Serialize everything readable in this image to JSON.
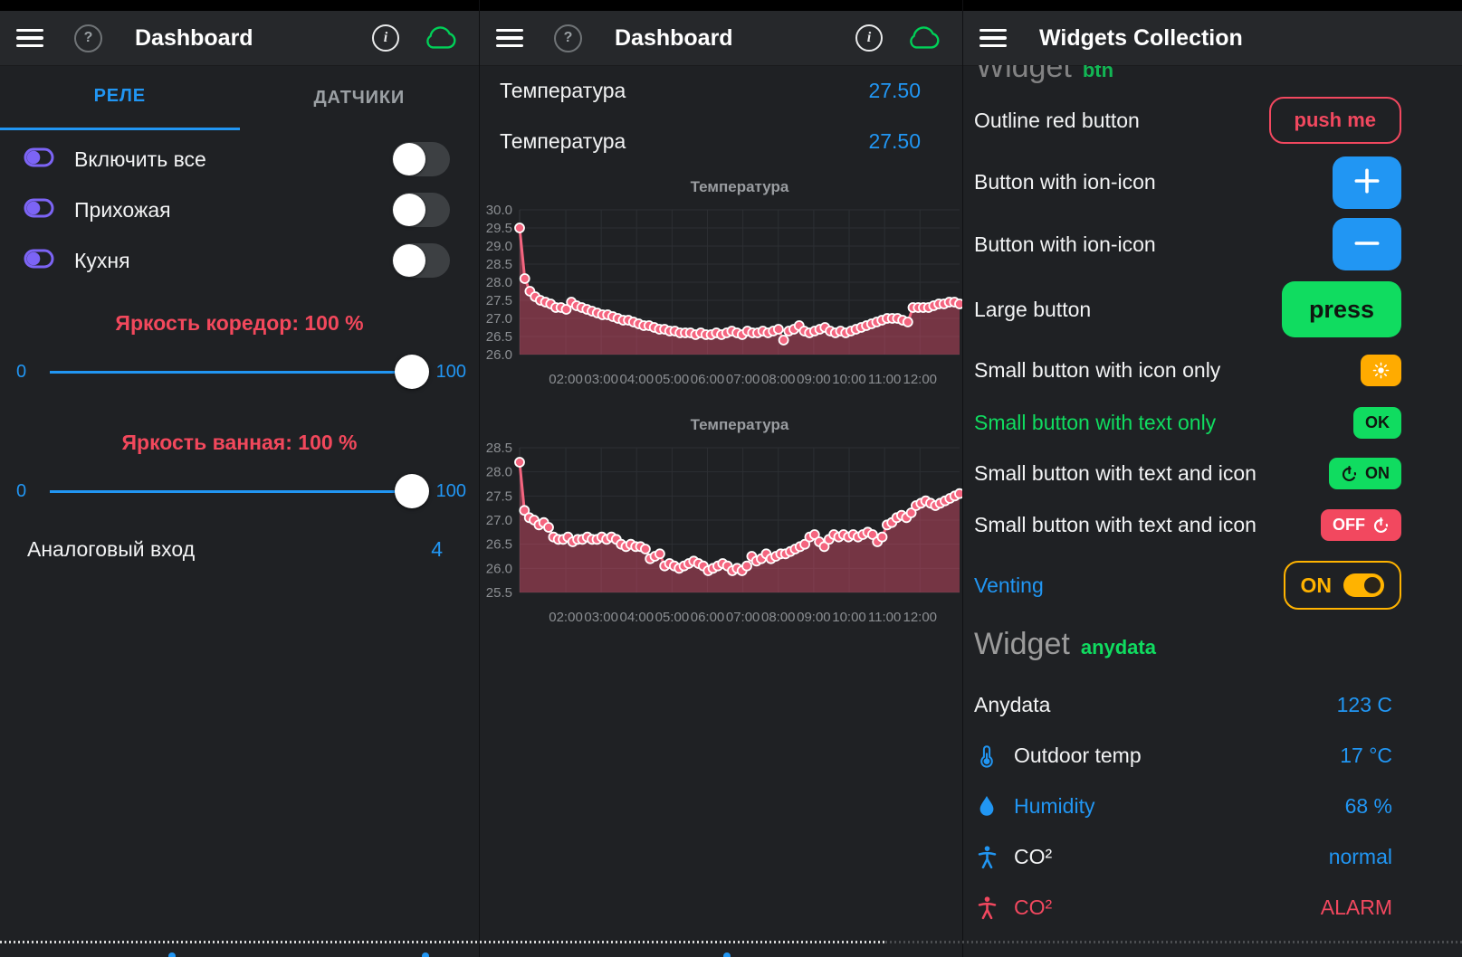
{
  "colors": {
    "accent": "#2196f3",
    "danger": "#f2485f",
    "success": "#10dc60",
    "warning": "#ffab00",
    "purple": "#7c64f5",
    "chart_line": "#f4657f",
    "chart_fill": "rgba(235,80,115,0.42)",
    "inactive_gray": "#9ba0a4"
  },
  "left": {
    "header": {
      "title": "Dashboard",
      "icons": [
        "menu-icon",
        "help-icon",
        "info-icon",
        "cloud-icon"
      ]
    },
    "tabs": [
      {
        "label": "РЕЛЕ",
        "active": true
      },
      {
        "label": "ДАТЧИКИ",
        "active": false
      }
    ],
    "switches": [
      {
        "label": "Включить все",
        "state": "off"
      },
      {
        "label": "Прихожая",
        "state": "off"
      },
      {
        "label": "Кухня",
        "state": "off"
      }
    ],
    "sliders": [
      {
        "label": "Яркость коредор: 100 %",
        "min": "0",
        "max": "100",
        "value": 100
      },
      {
        "label": "Яркость ванная: 100 %",
        "min": "0",
        "max": "100",
        "value": 100
      }
    ],
    "analog": {
      "label": "Аналоговый вход",
      "value": "4"
    }
  },
  "middle": {
    "header": {
      "title": "Dashboard",
      "icons": [
        "menu-icon",
        "help-icon",
        "info-icon",
        "cloud-icon"
      ]
    },
    "values": [
      {
        "label": "Температура",
        "value": "27.50"
      },
      {
        "label": "Температура",
        "value": "27.50"
      }
    ]
  },
  "right": {
    "header": {
      "title": "Widgets Collection",
      "icons": [
        "menu-icon"
      ]
    },
    "clipped_heading": {
      "title": "Widget",
      "tag": "btn"
    },
    "rows": [
      {
        "label": "Outline red button",
        "label_color": "#f2f3f4",
        "control": {
          "type": "outline",
          "text": "push me",
          "color": "#f2485f"
        }
      },
      {
        "label": "Button with ion-icon",
        "label_color": "#f2f3f4",
        "control": {
          "type": "solid",
          "icon": "plus",
          "color": "#2196f3",
          "icon_color": "#ffffff"
        }
      },
      {
        "label": "Button with ion-icon",
        "label_color": "#f2f3f4",
        "control": {
          "type": "solid",
          "icon": "minus",
          "color": "#2196f3",
          "icon_color": "#ffffff"
        }
      },
      {
        "label": "Large button",
        "label_color": "#f2f3f4",
        "control": {
          "type": "large",
          "text": "press",
          "color": "#10dc60",
          "text_color": "#101510"
        }
      },
      {
        "label": "Small button with icon only",
        "label_color": "#f2f3f4",
        "control": {
          "type": "small",
          "icon": "sun",
          "color": "#ffab00",
          "icon_color": "#ffffff"
        }
      },
      {
        "label": "Small button with text only",
        "label_color": "#10dc60",
        "control": {
          "type": "small",
          "text": "OK",
          "color": "#10dc60",
          "text_color": "#101510"
        }
      },
      {
        "label": "Small button with text and icon",
        "label_color": "#f2f3f4",
        "control": {
          "type": "small",
          "icon": "power",
          "icon_pos": "left",
          "text": "ON",
          "color": "#10dc60",
          "text_color": "#101510",
          "icon_color": "#101510"
        }
      },
      {
        "label": "Small button with text and icon",
        "label_color": "#f2f3f4",
        "control": {
          "type": "small",
          "icon": "power",
          "icon_pos": "right",
          "text": "OFF",
          "color": "#f2485f",
          "text_color": "#ffffff",
          "icon_color": "#ffffff"
        }
      },
      {
        "label": "Venting",
        "label_color": "#2196f3",
        "control": {
          "type": "toggle_outline",
          "text": "ON",
          "color": "#ffb300",
          "state": "on"
        }
      }
    ],
    "widget_heading": {
      "title": "Widget",
      "tag": "anydata"
    },
    "data_rows": [
      {
        "icon": null,
        "label": "Anydata",
        "value": "123 C",
        "label_color": "#f2f3f4",
        "value_color": "#2196f3"
      },
      {
        "icon": "thermometer",
        "icon_color": "#2196f3",
        "label": "Outdoor temp",
        "value": "17 °C",
        "label_color": "#f2f3f4",
        "value_color": "#2196f3"
      },
      {
        "icon": "droplet",
        "icon_color": "#2196f3",
        "label": "Humidity",
        "value": "68 %",
        "label_color": "#2196f3",
        "value_color": "#2196f3"
      },
      {
        "icon": "body",
        "icon_color": "#2196f3",
        "label": "CO²",
        "value": "normal",
        "label_color": "#f2f3f4",
        "value_color": "#2196f3"
      },
      {
        "icon": "body",
        "icon_color": "#f2485f",
        "label": "CO²",
        "value": "ALARM",
        "label_color": "#f2485f",
        "value_color": "#f2485f"
      }
    ]
  },
  "chart_data": [
    {
      "type": "line",
      "title": "Температура",
      "xlabel": "",
      "ylabel": "",
      "ylim": [
        26.0,
        30.0
      ],
      "y_ticks": [
        "30.0",
        "29.5",
        "29.0",
        "28.5",
        "28.0",
        "27.5",
        "27.0",
        "26.5",
        "26.0"
      ],
      "x_ticks": [
        "02:00",
        "03:00",
        "04:00",
        "05:00",
        "06:00",
        "07:00",
        "08:00",
        "09:00",
        "10:00",
        "11:00",
        "12:00"
      ],
      "grid": true,
      "legend": false,
      "line_color": "#f4657f",
      "fill_color": "rgba(235,80,115,0.42)",
      "marker": "circle",
      "values": [
        29.5,
        28.1,
        27.75,
        27.6,
        27.5,
        27.45,
        27.4,
        27.3,
        27.3,
        27.25,
        27.45,
        27.35,
        27.3,
        27.25,
        27.2,
        27.15,
        27.1,
        27.1,
        27.05,
        27.0,
        26.95,
        26.95,
        26.9,
        26.85,
        26.8,
        26.8,
        26.75,
        26.7,
        26.7,
        26.65,
        26.65,
        26.6,
        26.6,
        26.6,
        26.55,
        26.6,
        26.55,
        26.55,
        26.6,
        26.55,
        26.6,
        26.65,
        26.6,
        26.55,
        26.65,
        26.6,
        26.6,
        26.65,
        26.6,
        26.65,
        26.7,
        26.4,
        26.65,
        26.7,
        26.8,
        26.65,
        26.6,
        26.65,
        26.7,
        26.75,
        26.65,
        26.6,
        26.65,
        26.6,
        26.65,
        26.7,
        26.75,
        26.8,
        26.85,
        26.9,
        26.95,
        27.0,
        27.0,
        27.0,
        26.95,
        26.9,
        27.3,
        27.3,
        27.3,
        27.3,
        27.35,
        27.4,
        27.4,
        27.45,
        27.45,
        27.4
      ]
    },
    {
      "type": "line",
      "title": "Температура",
      "xlabel": "",
      "ylabel": "",
      "ylim": [
        25.5,
        28.5
      ],
      "y_ticks": [
        "28.5",
        "28.0",
        "27.5",
        "27.0",
        "26.5",
        "26.0",
        "25.5"
      ],
      "x_ticks": [
        "02:00",
        "03:00",
        "04:00",
        "05:00",
        "06:00",
        "07:00",
        "08:00",
        "09:00",
        "10:00",
        "11:00",
        "12:00"
      ],
      "grid": true,
      "legend": false,
      "line_color": "#f4657f",
      "fill_color": "rgba(235,80,115,0.42)",
      "marker": "circle",
      "values": [
        28.2,
        27.2,
        27.05,
        27.0,
        26.9,
        26.95,
        26.85,
        26.65,
        26.6,
        26.6,
        26.65,
        26.55,
        26.6,
        26.6,
        26.65,
        26.6,
        26.6,
        26.65,
        26.6,
        26.65,
        26.6,
        26.5,
        26.45,
        26.5,
        26.45,
        26.45,
        26.4,
        26.2,
        26.25,
        26.3,
        26.05,
        26.1,
        26.05,
        26.0,
        26.05,
        26.1,
        26.15,
        26.1,
        26.05,
        25.95,
        26.0,
        26.05,
        26.1,
        26.05,
        25.95,
        26.0,
        25.95,
        26.05,
        26.25,
        26.15,
        26.2,
        26.3,
        26.2,
        26.25,
        26.3,
        26.3,
        26.35,
        26.4,
        26.45,
        26.5,
        26.65,
        26.7,
        26.55,
        26.45,
        26.6,
        26.7,
        26.65,
        26.7,
        26.65,
        26.7,
        26.65,
        26.7,
        26.75,
        26.7,
        26.55,
        26.65,
        26.9,
        26.95,
        27.05,
        27.1,
        27.05,
        27.15,
        27.3,
        27.35,
        27.4,
        27.35,
        27.3,
        27.35,
        27.4,
        27.45,
        27.5,
        27.55
      ]
    }
  ]
}
